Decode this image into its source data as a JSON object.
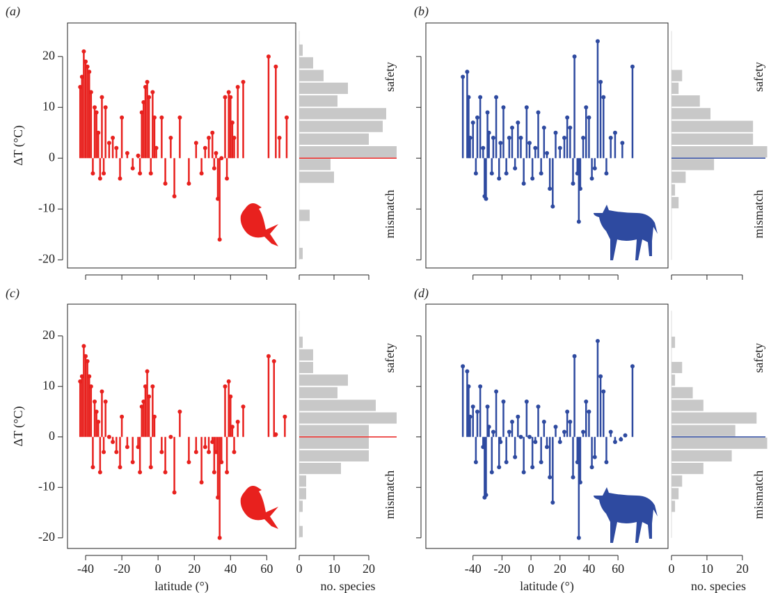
{
  "chart_data": [
    {
      "type": "lollipop",
      "title": "(a)",
      "ylabel": "ΔT (°C)",
      "color": "#e8211e",
      "x": [
        -43,
        -42,
        -41,
        -40,
        -39,
        -38,
        -37,
        -36,
        -35,
        -34,
        -33,
        -32,
        -31,
        -30,
        -29,
        -27,
        -25,
        -23,
        -21,
        -20,
        -17,
        -14,
        -11,
        -10,
        -9,
        -8,
        -7,
        -6,
        -5,
        -4,
        -3,
        -2,
        -1,
        2,
        4,
        7,
        9,
        12,
        17,
        21,
        24,
        26,
        28,
        30,
        31,
        32,
        33,
        34,
        35,
        37,
        38,
        39,
        40,
        41,
        42,
        44,
        47,
        61,
        65,
        67,
        71
      ],
      "values": [
        14,
        16,
        21,
        19,
        18,
        17,
        13,
        -3,
        10,
        9,
        5,
        -4,
        12,
        -3,
        10,
        3,
        4,
        2,
        -4,
        8,
        1,
        -2,
        0.5,
        -3,
        9,
        11,
        14,
        15,
        12,
        -3,
        13,
        8,
        2,
        8,
        -5,
        4,
        -7.5,
        8,
        -5,
        3,
        -3,
        2,
        4,
        5,
        -2,
        1,
        -8,
        -16,
        0,
        12,
        -4,
        13,
        12,
        7,
        4,
        14,
        15,
        20,
        18,
        4,
        8
      ],
      "xlim": [
        -50,
        76
      ],
      "ylim": [
        -21.6,
        26.6
      ],
      "xticks": [
        -40,
        -20,
        0,
        20,
        40,
        60
      ],
      "yticks": [
        -20,
        -10,
        0,
        10,
        20
      ],
      "xtick_labels": false,
      "ytick_labels": true
    },
    {
      "type": "histogram",
      "color": "#c8c8c8",
      "bins": [
        -20,
        -17.5,
        -15,
        -12.5,
        -10,
        -7.5,
        -5,
        -2.5,
        0,
        2.5,
        5,
        7.5,
        10,
        12.5,
        15,
        17.5,
        20,
        22.5,
        25
      ],
      "values": [
        1,
        0,
        0,
        3,
        0,
        0,
        10,
        9,
        28,
        20,
        24,
        25,
        11,
        14,
        7,
        4,
        1,
        0
      ],
      "xlim": [
        0,
        28
      ],
      "ylim": [
        -21.6,
        26.6
      ],
      "xticks": [
        0,
        10,
        20
      ],
      "xtick_labels": false,
      "refline": {
        "value": 0,
        "color": "#e8211e"
      },
      "annotations": [
        "safety",
        "mismatch"
      ]
    },
    {
      "type": "lollipop",
      "title": "(b)",
      "color": "#2e4aa0",
      "x": [
        -47,
        -44,
        -43,
        -42,
        -40,
        -38,
        -37,
        -35,
        -33,
        -32,
        -31,
        -30,
        -29,
        -27,
        -26,
        -24,
        -22,
        -21,
        -19,
        -17,
        -15,
        -13,
        -11,
        -9,
        -7,
        -5,
        -3,
        -1,
        1,
        3,
        5,
        7,
        9,
        11,
        13,
        15,
        17,
        20,
        23,
        25,
        27,
        29,
        30,
        32,
        33,
        34,
        36,
        38,
        40,
        42,
        44,
        46,
        48,
        50,
        52,
        55,
        58,
        63,
        70
      ],
      "values": [
        16,
        17,
        12,
        4,
        7,
        -3,
        8,
        12,
        2,
        -7.5,
        -8,
        9,
        5,
        -3,
        4,
        12,
        -4,
        3,
        10,
        -3,
        4,
        6,
        -2,
        7,
        4,
        -5,
        10,
        3,
        -4,
        2,
        9,
        -3,
        6,
        1,
        -6,
        -9.5,
        5,
        2,
        4,
        8,
        6,
        -5,
        20,
        -3,
        -12.5,
        -6,
        4,
        10,
        8,
        -4,
        -2,
        23,
        15,
        12,
        -3,
        4,
        5,
        3,
        18
      ],
      "xlim": [
        -72.5,
        94.5
      ],
      "ylim": [
        -21.6,
        26.6
      ],
      "xticks": [
        -40,
        -20,
        0,
        20,
        40,
        60
      ],
      "yticks": [
        -20,
        -10,
        0,
        10,
        20
      ],
      "xtick_labels": false,
      "ytick_labels": false
    },
    {
      "type": "histogram",
      "color": "#c8c8c8",
      "bins": [
        -20,
        -17.5,
        -15,
        -12.5,
        -10,
        -7.5,
        -5,
        -2.5,
        0,
        2.5,
        5,
        7.5,
        10,
        12.5,
        15,
        17.5,
        20,
        22.5,
        25
      ],
      "values": [
        0,
        0,
        0,
        0,
        2,
        1,
        4,
        12,
        27,
        23,
        23,
        11,
        8,
        2,
        3,
        0,
        0,
        0
      ],
      "xlim": [
        0,
        26.5
      ],
      "ylim": [
        -21.6,
        26.6
      ],
      "xticks": [
        0,
        10,
        20
      ],
      "xtick_labels": false,
      "refline": {
        "value": 0,
        "color": "#2e4aa0"
      },
      "annotations": [
        "safety",
        "mismatch"
      ]
    },
    {
      "type": "lollipop",
      "title": "(c)",
      "ylabel": "ΔT (°C)",
      "xlabel": "latitude (°)",
      "color": "#e8211e",
      "x": [
        -43,
        -42,
        -41,
        -40,
        -39,
        -38,
        -37,
        -36,
        -35,
        -34,
        -33,
        -32,
        -31,
        -30,
        -29,
        -27,
        -25,
        -23,
        -21,
        -20,
        -17,
        -14,
        -11,
        -10,
        -9,
        -8,
        -7,
        -6,
        -5,
        -4,
        -3,
        -2,
        2,
        4,
        7,
        9,
        12,
        17,
        21,
        24,
        26,
        28,
        30,
        31,
        32,
        33,
        34,
        35,
        37,
        38,
        39,
        40,
        41,
        42,
        44,
        47,
        61,
        64,
        65,
        70
      ],
      "values": [
        11,
        12,
        18,
        16,
        15,
        12,
        10,
        -6,
        7,
        5,
        3,
        -7,
        9,
        -3,
        7,
        0,
        -1,
        -3,
        -6,
        4,
        -2,
        -5,
        -2,
        -7,
        6,
        7,
        10,
        13,
        8,
        -6,
        10,
        4,
        -3,
        -7,
        0,
        -11,
        5,
        -5,
        -3,
        -9,
        -2,
        -3,
        -1,
        -7,
        -3,
        -12,
        -20,
        -5,
        10,
        -7,
        11,
        8,
        2,
        -3,
        3,
        6,
        16,
        15,
        0.5,
        4
      ],
      "xlim": [
        -50,
        76
      ],
      "ylim": [
        -22.1,
        26.3
      ],
      "xticks": [
        -40,
        -20,
        0,
        20,
        40,
        60
      ],
      "yticks": [
        -20,
        -10,
        0,
        10,
        20
      ],
      "xtick_labels": true,
      "ytick_labels": true
    },
    {
      "type": "histogram",
      "xlabel": "no. species",
      "color": "#c8c8c8",
      "bins": [
        -20,
        -17.5,
        -15,
        -12.5,
        -10,
        -7.5,
        -5,
        -2.5,
        0,
        2.5,
        5,
        7.5,
        10,
        12.5,
        15,
        17.5,
        20,
        22.5,
        25
      ],
      "values": [
        1,
        0,
        1,
        2,
        2,
        12,
        20,
        20,
        20,
        28,
        22,
        11,
        14,
        4,
        4,
        1,
        0,
        0
      ],
      "xlim": [
        0,
        28
      ],
      "ylim": [
        -22.1,
        26.3
      ],
      "xticks": [
        0,
        10,
        20
      ],
      "xtick_labels": true,
      "refline": {
        "value": 0,
        "color": "#e8211e"
      },
      "annotations": [
        "safety",
        "mismatch"
      ]
    },
    {
      "type": "lollipop",
      "title": "(d)",
      "xlabel": "latitude (°)",
      "color": "#2e4aa0",
      "x": [
        -47,
        -44,
        -43,
        -42,
        -40,
        -38,
        -37,
        -35,
        -33,
        -32,
        -31,
        -30,
        -29,
        -27,
        -26,
        -24,
        -22,
        -21,
        -19,
        -17,
        -15,
        -13,
        -11,
        -9,
        -7,
        -5,
        -3,
        -1,
        1,
        3,
        5,
        7,
        9,
        11,
        13,
        15,
        17,
        20,
        23,
        25,
        27,
        29,
        30,
        32,
        33,
        34,
        36,
        38,
        40,
        42,
        44,
        46,
        48,
        50,
        52,
        55,
        58,
        62,
        65,
        70
      ],
      "values": [
        14,
        13,
        10,
        4,
        6,
        -5,
        5,
        10,
        -2,
        -12,
        -11.5,
        6,
        2,
        -7,
        1,
        9,
        -6,
        -1,
        7,
        -5,
        1,
        3,
        -4,
        4,
        0,
        -7,
        7,
        0,
        -6,
        -1,
        6,
        -5,
        3,
        -2,
        -8,
        -13,
        2,
        -1,
        1,
        5,
        3,
        -8,
        16,
        -5,
        -20,
        -9,
        1,
        7,
        5,
        -6,
        -4,
        19,
        12,
        9,
        -5,
        1,
        -1,
        -0.5,
        0.3,
        14
      ],
      "xlim": [
        -72.5,
        94.5
      ],
      "ylim": [
        -22.1,
        26.3
      ],
      "xticks": [
        -40,
        -20,
        0,
        20,
        40,
        60
      ],
      "yticks": [
        -20,
        -10,
        0,
        10,
        20
      ],
      "xtick_labels": true,
      "ytick_labels": false
    },
    {
      "type": "histogram",
      "xlabel": "no. species",
      "color": "#c8c8c8",
      "bins": [
        -20,
        -17.5,
        -15,
        -12.5,
        -10,
        -7.5,
        -5,
        -2.5,
        0,
        2.5,
        5,
        7.5,
        10,
        12.5,
        15,
        17.5,
        20,
        22.5,
        25
      ],
      "values": [
        0,
        0,
        1,
        2,
        3,
        9,
        17,
        27,
        18,
        24,
        9,
        6,
        1,
        3,
        0,
        1,
        0,
        0
      ],
      "xlim": [
        0,
        26.5
      ],
      "ylim": [
        -22.1,
        26.3
      ],
      "xticks": [
        0,
        10,
        20
      ],
      "xtick_labels": true,
      "refline": {
        "value": 0,
        "color": "#2e4aa0"
      },
      "annotations": [
        "safety",
        "mismatch"
      ]
    }
  ]
}
